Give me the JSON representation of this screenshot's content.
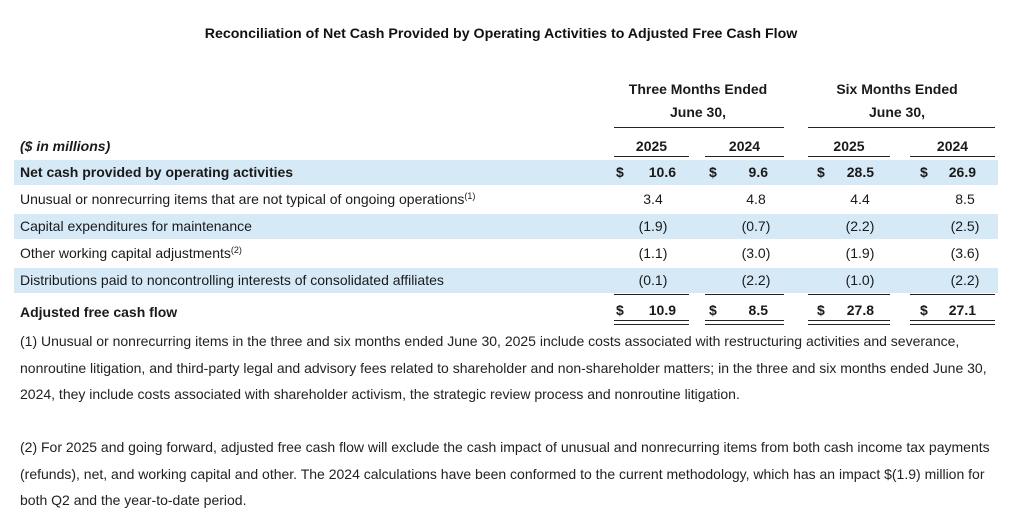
{
  "title": "Reconciliation of Net Cash Provided by Operating Activities to Adjusted Free Cash Flow",
  "groups": [
    {
      "line1": "Three Months Ended",
      "line2": "June 30,"
    },
    {
      "line1": "Six Months Ended",
      "line2": "June 30,"
    }
  ],
  "units_label": "($ in millions)",
  "years": [
    "2025",
    "2024",
    "2025",
    "2024"
  ],
  "rows": [
    {
      "label": "Net cash provided by operating activities",
      "sup": "",
      "values": [
        "10.6",
        "9.6",
        "28.5",
        "26.9"
      ],
      "dollar": "$"
    },
    {
      "label": "Unusual or nonrecurring items that are not typical of ongoing operations",
      "sup": "(1)",
      "values": [
        "3.4",
        "4.8",
        "4.4",
        "8.5"
      ]
    },
    {
      "label": "Capital expenditures for maintenance",
      "sup": "",
      "values": [
        "(1.9)",
        "(0.7)",
        "(2.2)",
        "(2.5)"
      ]
    },
    {
      "label": "Other working capital adjustments",
      "sup": "(2)",
      "values": [
        "(1.1)",
        "(3.0)",
        "(1.9)",
        "(3.6)"
      ]
    },
    {
      "label": "Distributions paid to noncontrolling interests of consolidated affiliates",
      "sup": "",
      "values": [
        "(0.1)",
        "(2.2)",
        "(1.0)",
        "(2.2)"
      ]
    },
    {
      "label": "Adjusted free cash flow",
      "sup": "",
      "values": [
        "10.9",
        "8.5",
        "27.8",
        "27.1"
      ],
      "dollar": "$"
    }
  ],
  "notes": [
    "(1) Unusual or nonrecurring items in the three and six months ended June 30, 2025 include costs associated with restructuring activities and severance, nonroutine litigation, and third-party legal and advisory fees related to shareholder and non-shareholder matters; in the three and six months ended June 30, 2024, they include costs associated with shareholder activism, the strategic review process and nonroutine litigation.",
    "(2) For 2025 and going forward, adjusted free cash flow will exclude the cash impact of unusual and nonrecurring items from both cash income tax payments (refunds), net, and working capital and other. The 2024 calculations have been conformed to the current methodology, which has an impact $(1.9) million for both Q2 and the year-to-date period."
  ]
}
